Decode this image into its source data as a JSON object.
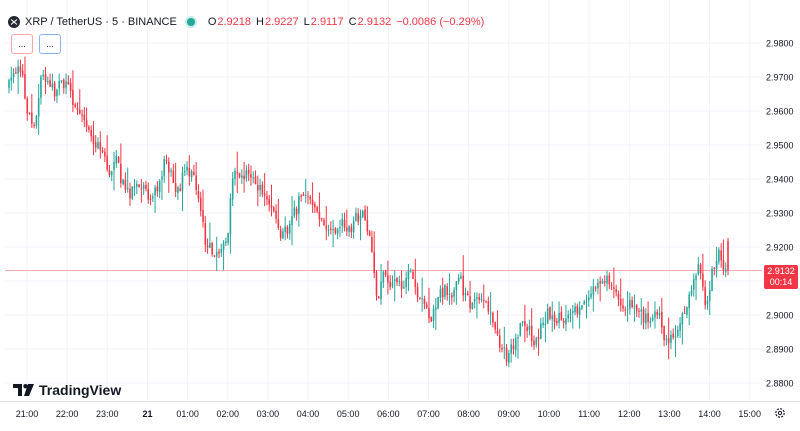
{
  "header": {
    "symbol": "XRP / TetherUS · 5 · BINANCE",
    "o_label": "O",
    "o_value": "2.9218",
    "h_label": "H",
    "h_value": "2.9227",
    "l_label": "L",
    "l_value": "2.9117",
    "c_label": "C",
    "c_value": "2.9132",
    "change": "−0.0086 (−0.29%)"
  },
  "indicator_buttons": [
    "...",
    "..."
  ],
  "logo_text": "TradingView",
  "price_label": {
    "price": "2.9132",
    "countdown": "00:14"
  },
  "colors": {
    "up": "#26a69a",
    "down": "#f23645",
    "grid": "#f0f3fa",
    "axis_text": "#131722",
    "price_line": "#f23645"
  },
  "icons": [
    "xrp-logo-icon",
    "market-status-icon",
    "tradingview-logo-icon",
    "settings-icon"
  ],
  "chart_data": {
    "type": "candlestick",
    "title": "XRP / TetherUS · 5 · BINANCE",
    "xlabel": "",
    "ylabel": "",
    "ylim": [
      2.876,
      2.984
    ],
    "grid": true,
    "y_ticks": [
      "2.9800",
      "2.9700",
      "2.9600",
      "2.9500",
      "2.9400",
      "2.9300",
      "2.9200",
      "2.9100",
      "2.9000",
      "2.8900",
      "2.8800"
    ],
    "x_ticks": [
      "21:00",
      "22:00",
      "23:00",
      "21",
      "01:00",
      "02:00",
      "03:00",
      "04:00",
      "05:00",
      "06:00",
      "07:00",
      "08:00",
      "09:00",
      "10:00",
      "11:00",
      "12:00",
      "13:00",
      "14:00",
      "15:00"
    ],
    "current_price": 2.9132,
    "candle_minutes": 5,
    "anchors": [
      [
        2.967,
        2.973,
        2.966
      ],
      [
        2.971,
        2.975,
        2.965
      ],
      [
        2.973,
        2.976,
        2.966
      ],
      [
        2.96,
        2.965,
        2.955
      ],
      [
        2.954,
        2.968,
        2.953
      ],
      [
        2.97,
        2.972,
        2.965
      ],
      [
        2.968,
        2.971,
        2.966
      ],
      [
        2.966,
        2.971,
        2.965
      ],
      [
        2.968,
        2.971,
        2.967
      ],
      [
        2.969,
        2.972,
        2.968
      ],
      [
        2.961,
        2.968,
        2.96
      ],
      [
        2.957,
        2.961,
        2.955
      ],
      [
        2.953,
        2.957,
        2.947
      ],
      [
        2.95,
        2.954,
        2.946
      ],
      [
        2.948,
        2.953,
        2.944
      ],
      [
        2.941,
        2.948,
        2.935
      ],
      [
        2.945,
        2.951,
        2.944
      ],
      [
        2.938,
        2.946,
        2.936
      ],
      [
        2.936,
        2.94,
        2.935
      ],
      [
        2.938,
        2.94,
        2.933
      ],
      [
        2.937,
        2.939,
        2.935
      ],
      [
        2.933,
        2.937,
        2.93
      ],
      [
        2.937,
        2.942,
        2.933
      ],
      [
        2.945,
        2.946,
        2.935
      ],
      [
        2.941,
        2.945,
        2.936
      ],
      [
        2.936,
        2.943,
        2.928
      ],
      [
        2.943,
        2.947,
        2.938
      ],
      [
        2.942,
        2.945,
        2.938
      ],
      [
        2.933,
        2.943,
        2.93
      ],
      [
        2.922,
        2.933,
        2.92
      ],
      [
        2.918,
        2.923,
        2.913
      ],
      [
        2.918,
        2.922,
        2.912
      ],
      [
        2.921,
        2.93,
        2.918
      ],
      [
        2.942,
        2.948,
        2.932
      ],
      [
        2.94,
        2.945,
        2.936
      ],
      [
        2.941,
        2.944,
        2.938
      ],
      [
        2.939,
        2.941,
        2.932
      ],
      [
        2.937,
        2.942,
        2.932
      ],
      [
        2.934,
        2.94,
        2.929
      ],
      [
        2.93,
        2.935,
        2.925
      ],
      [
        2.924,
        2.929,
        2.922
      ],
      [
        2.925,
        2.935,
        2.92
      ],
      [
        2.93,
        2.936,
        2.926
      ],
      [
        2.935,
        2.94,
        2.933
      ],
      [
        2.934,
        2.939,
        2.93
      ],
      [
        2.931,
        2.936,
        2.926
      ],
      [
        2.927,
        2.932,
        2.922
      ],
      [
        2.925,
        2.928,
        2.92
      ],
      [
        2.926,
        2.928,
        2.923
      ],
      [
        2.927,
        2.931,
        2.924
      ],
      [
        2.925,
        2.929,
        2.923
      ],
      [
        2.928,
        2.931,
        2.922
      ],
      [
        2.93,
        2.932,
        2.925
      ],
      [
        2.922,
        2.93,
        2.913
      ],
      [
        2.905,
        2.915,
        2.903
      ],
      [
        2.912,
        2.916,
        2.906
      ],
      [
        2.908,
        2.913,
        2.904
      ],
      [
        2.909,
        2.913,
        2.905
      ],
      [
        2.91,
        2.915,
        2.907
      ],
      [
        2.912,
        2.917,
        2.906
      ],
      [
        2.907,
        2.913,
        2.901
      ],
      [
        2.903,
        2.908,
        2.899
      ],
      [
        2.9,
        2.905,
        2.895
      ],
      [
        2.906,
        2.911,
        2.903
      ],
      [
        2.907,
        2.913,
        2.903
      ],
      [
        2.905,
        2.91,
        2.903
      ],
      [
        2.913,
        2.918,
        2.907
      ],
      [
        2.905,
        2.91,
        2.902
      ],
      [
        2.903,
        2.906,
        2.899
      ],
      [
        2.905,
        2.909,
        2.902
      ],
      [
        2.902,
        2.907,
        2.897
      ],
      [
        2.898,
        2.903,
        2.894
      ],
      [
        2.89,
        2.897,
        2.887
      ],
      [
        2.888,
        2.893,
        2.886
      ],
      [
        2.891,
        2.894,
        2.887
      ],
      [
        2.897,
        2.903,
        2.892
      ],
      [
        2.897,
        2.902,
        2.894
      ],
      [
        2.891,
        2.896,
        2.888
      ],
      [
        2.896,
        2.901,
        2.892
      ],
      [
        2.9,
        2.904,
        2.895
      ],
      [
        2.899,
        2.904,
        2.896
      ],
      [
        2.899,
        2.903,
        2.896
      ],
      [
        2.899,
        2.902,
        2.896
      ],
      [
        2.901,
        2.904,
        2.896
      ],
      [
        2.903,
        2.906,
        2.899
      ],
      [
        2.905,
        2.907,
        2.901
      ],
      [
        2.908,
        2.911,
        2.904
      ],
      [
        2.91,
        2.913,
        2.907
      ],
      [
        2.91,
        2.914,
        2.905
      ],
      [
        2.905,
        2.911,
        2.901
      ],
      [
        2.902,
        2.907,
        2.898
      ],
      [
        2.903,
        2.906,
        2.898
      ],
      [
        2.901,
        2.905,
        2.897
      ],
      [
        2.899,
        2.904,
        2.896
      ],
      [
        2.9,
        2.904,
        2.896
      ],
      [
        2.901,
        2.905,
        2.897
      ],
      [
        2.894,
        2.9,
        2.887
      ],
      [
        2.893,
        2.897,
        2.886
      ],
      [
        2.895,
        2.899,
        2.89
      ],
      [
        2.901,
        2.906,
        2.897
      ],
      [
        2.908,
        2.912,
        2.904
      ],
      [
        2.914,
        2.918,
        2.91
      ],
      [
        2.904,
        2.91,
        2.9
      ],
      [
        2.912,
        2.92,
        2.911
      ],
      [
        2.918,
        2.923,
        2.912
      ],
      [
        2.913,
        2.922,
        2.911
      ]
    ]
  }
}
